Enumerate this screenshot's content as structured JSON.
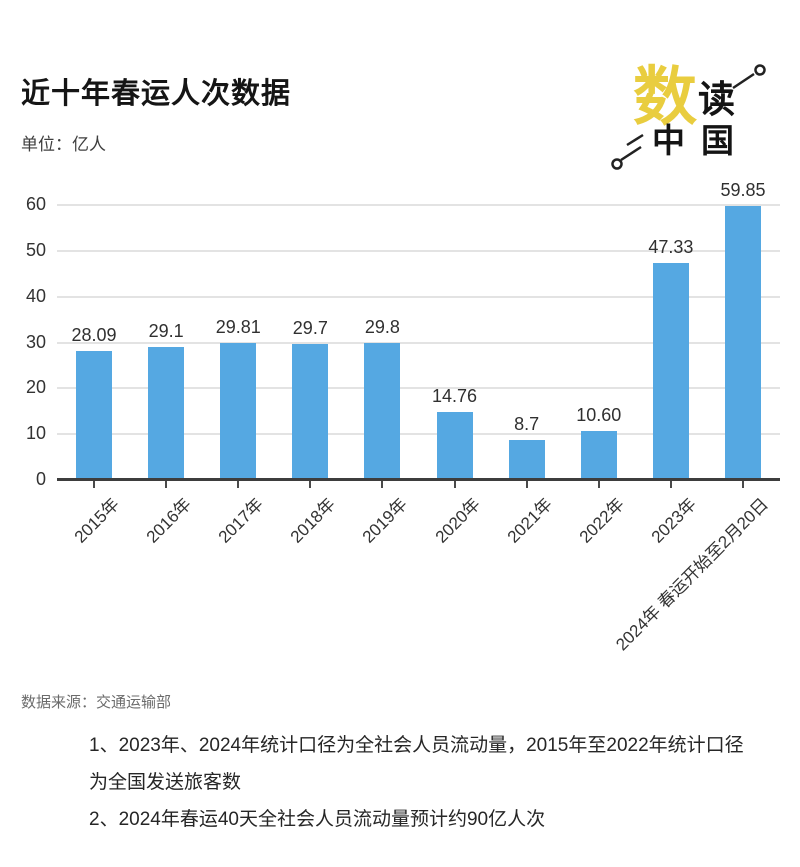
{
  "header": {
    "title": "近十年春运人次数据",
    "unit_label": "单位：亿人"
  },
  "logo": {
    "char_main": "数",
    "char_second": "读",
    "char_bottom": "中国",
    "main_color": "#E9CD3F",
    "ink_color": "#141414"
  },
  "chart_data": {
    "type": "bar",
    "title": "近十年春运人次数据",
    "unit": "亿人",
    "categories": [
      "2015年",
      "2016年",
      "2017年",
      "2018年",
      "2019年",
      "2020年",
      "2021年",
      "2022年",
      "2023年",
      "2024年 春运开始至2月20日"
    ],
    "values": [
      28.09,
      29.1,
      29.81,
      29.7,
      29.8,
      14.76,
      8.7,
      10.6,
      47.33,
      59.85
    ],
    "value_labels": [
      "28.09",
      "29.1",
      "29.81",
      "29.7",
      "29.8",
      "14.76",
      "8.7",
      "10.60",
      "47.33",
      "59.85"
    ],
    "ylim": [
      0,
      60
    ],
    "yticks": [
      0,
      10,
      20,
      30,
      40,
      50,
      60
    ],
    "bar_color": "#55A8E2",
    "grid": true,
    "legend": null,
    "xlabel": "",
    "ylabel": ""
  },
  "footer": {
    "source": "数据来源：交通运输部",
    "notes": [
      "1、2023年、2024年统计口径为全社会人员流动量，2015年至2022年统计口径",
      "为全国发送旅客数",
      "2、2024年春运40天全社会人员流动量预计约90亿人次"
    ]
  }
}
